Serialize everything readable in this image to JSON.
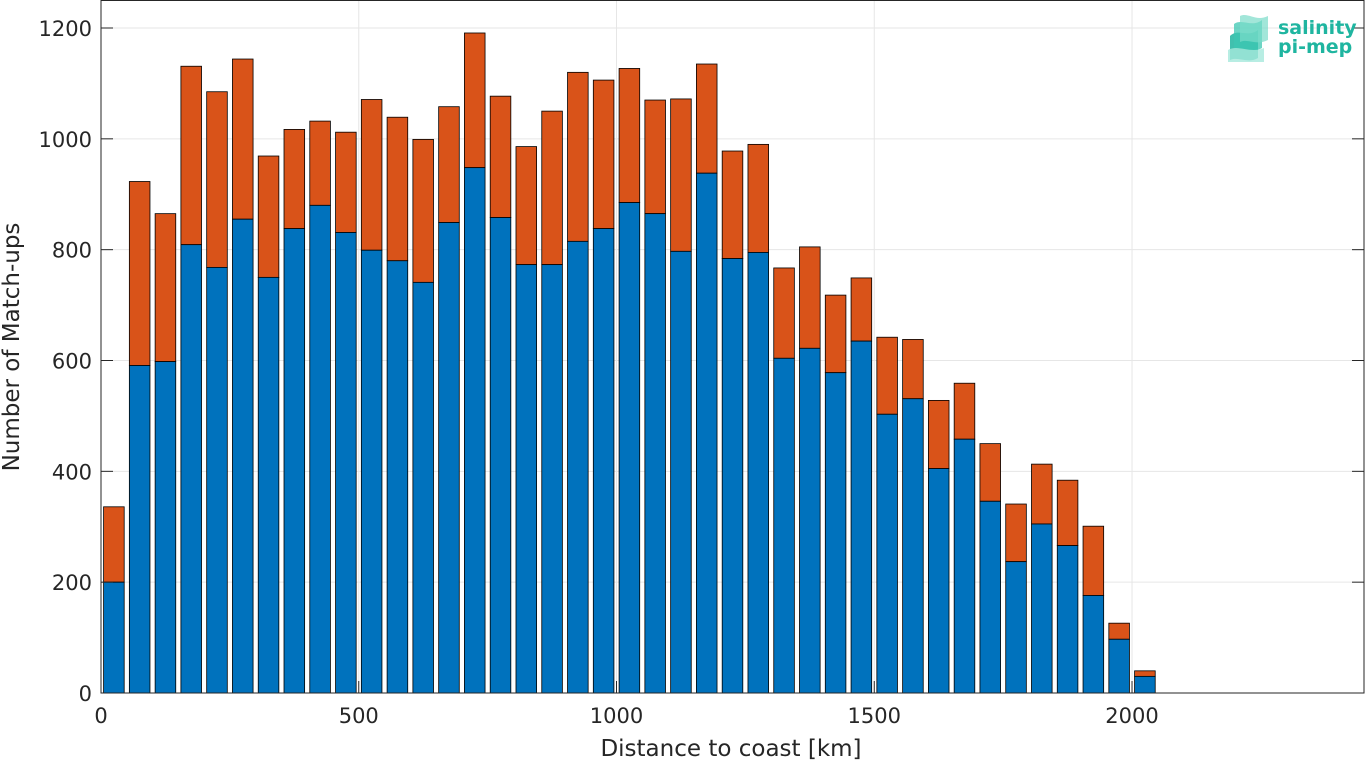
{
  "chart_data": {
    "type": "bar",
    "stacked": true,
    "xlabel": "Distance to coast [km]",
    "ylabel": "Number of Match-ups",
    "xlim": [
      0,
      2450
    ],
    "ylim": [
      0,
      1200
    ],
    "xticks": [
      0,
      500,
      1000,
      1500,
      2000
    ],
    "yticks": [
      0,
      200,
      400,
      600,
      800,
      1000,
      1200
    ],
    "grid": true,
    "bin_width": 50,
    "x": [
      25,
      75,
      125,
      175,
      225,
      275,
      325,
      375,
      425,
      475,
      525,
      575,
      625,
      675,
      725,
      775,
      825,
      875,
      925,
      975,
      1025,
      1075,
      1125,
      1175,
      1225,
      1275,
      1325,
      1375,
      1425,
      1475,
      1525,
      1575,
      1625,
      1675,
      1725,
      1775,
      1825,
      1875,
      1925,
      1975,
      2025
    ],
    "series": [
      {
        "color": "#0072bd",
        "values": [
          200,
          591,
          598,
          809,
          768,
          855,
          750,
          838,
          880,
          831,
          799,
          780,
          741,
          849,
          948,
          858,
          773,
          773,
          815,
          838,
          885,
          865,
          797,
          938,
          784,
          795,
          604,
          622,
          578,
          635,
          503,
          531,
          405,
          458,
          346,
          237,
          305,
          266,
          176,
          97,
          30
        ]
      },
      {
        "color": "#d95319",
        "values": [
          136,
          332,
          267,
          322,
          317,
          289,
          219,
          179,
          152,
          181,
          272,
          259,
          258,
          209,
          243,
          219,
          213,
          277,
          305,
          268,
          242,
          205,
          275,
          197,
          194,
          195,
          163,
          183,
          140,
          114,
          139,
          107,
          123,
          101,
          104,
          104,
          108,
          118,
          125,
          29,
          10
        ]
      }
    ]
  },
  "logo": {
    "line1": "salinity",
    "line2": "pi-mep",
    "color": "#1fb5a0"
  }
}
